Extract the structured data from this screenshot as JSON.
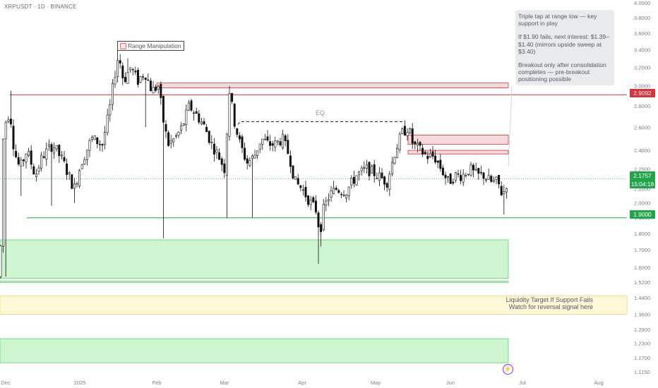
{
  "ticker_label": "XRPUSDT · 1D · BINANCE",
  "note": {
    "line1": "Triple tap at range low — key support in play",
    "line2": "If $1.90 fails, next interest: $1.39–$1.40 (mirrors upside sweep at $3.40)",
    "line3": "Breakout only after consolidation completes — pre-breakout positioning possible"
  },
  "annotations": {
    "range_manipulation": "Range Manipulation",
    "eq": "EQ",
    "liquidity_line1": "Liquidity Target If Support Fails",
    "liquidity_line2": "Watch for reversal signal here"
  },
  "badges": {
    "resistance": "2.9092",
    "price": "2.1757",
    "countdown": "15:04:18",
    "support": "1.9000"
  },
  "colors": {
    "up": "#089981",
    "down": "#f23645",
    "candle": "#111111",
    "resistance_line": "#d8333b",
    "support_line": "#22a54a",
    "price_badge": "#22a54a",
    "supply_zone": "#f7d9dc",
    "demand_zone": "#cdf5cf",
    "liquidity_zone": "#fff7d6"
  },
  "icons": {
    "alert": "lightning-icon",
    "tag": "flag-icon"
  },
  "chart_data": {
    "type": "candlestick",
    "symbol": "XRPUSDT",
    "interval": "1D",
    "exchange": "BINANCE",
    "x_ticks": [
      "Dec",
      "2025",
      "Feb",
      "Mar",
      "Apr",
      "May",
      "Jun",
      "Jul",
      "Aug"
    ],
    "y_ticks": [
      4.0,
      3.8,
      3.6,
      3.4,
      3.2,
      3.0,
      2.8,
      2.6,
      2.4,
      2.25,
      2.1,
      2.0,
      1.9,
      1.8,
      1.7,
      1.6,
      1.52,
      1.44,
      1.36,
      1.29,
      1.23,
      1.17,
      1.115
    ],
    "y_tick_labels": [
      "4.0000",
      "3.8000",
      "3.6000",
      "3.4000",
      "3.2000",
      "3.0000",
      "2.8000",
      "2.6000",
      "2.4000",
      "2.2500",
      "2.1000",
      "2.0000",
      "1.9000",
      "1.8000",
      "1.7000",
      "1.6000",
      "1.5200",
      "1.4400",
      "1.3600",
      "1.2900",
      "1.2300",
      "1.1700",
      "1.1150"
    ],
    "y_scale": "log",
    "ylim": [
      1.085,
      4.0
    ],
    "close_path": [
      [
        0,
        1.55
      ],
      [
        5,
        2.6
      ],
      [
        14,
        2.75
      ],
      [
        20,
        2.4
      ],
      [
        28,
        2.25
      ],
      [
        38,
        2.4
      ],
      [
        50,
        2.2
      ],
      [
        60,
        2.35
      ],
      [
        75,
        2.45
      ],
      [
        90,
        2.3
      ],
      [
        105,
        2.1
      ],
      [
        115,
        2.3
      ],
      [
        130,
        2.5
      ],
      [
        145,
        2.45
      ],
      [
        155,
        2.75
      ],
      [
        162,
        3.1
      ],
      [
        168,
        3.35
      ],
      [
        175,
        3.05
      ],
      [
        185,
        3.2
      ],
      [
        195,
        3.05
      ],
      [
        205,
        3.15
      ],
      [
        215,
        2.95
      ],
      [
        225,
        3.0
      ],
      [
        230,
        2.7
      ],
      [
        238,
        2.45
      ],
      [
        248,
        2.5
      ],
      [
        258,
        2.6
      ],
      [
        268,
        2.8
      ],
      [
        280,
        2.7
      ],
      [
        290,
        2.6
      ],
      [
        300,
        2.45
      ],
      [
        310,
        2.35
      ],
      [
        318,
        2.25
      ],
      [
        325,
        2.95
      ],
      [
        332,
        2.65
      ],
      [
        340,
        2.45
      ],
      [
        350,
        2.3
      ],
      [
        360,
        2.35
      ],
      [
        370,
        2.5
      ],
      [
        380,
        2.45
      ],
      [
        390,
        2.45
      ],
      [
        400,
        2.5
      ],
      [
        410,
        2.35
      ],
      [
        418,
        2.15
      ],
      [
        428,
        2.1
      ],
      [
        440,
        2.0
      ],
      [
        448,
        1.95
      ],
      [
        453,
        1.8
      ],
      [
        458,
        1.95
      ],
      [
        466,
        2.05
      ],
      [
        476,
        2.1
      ],
      [
        490,
        2.08
      ],
      [
        505,
        2.2
      ],
      [
        520,
        2.25
      ],
      [
        535,
        2.2
      ],
      [
        548,
        2.15
      ],
      [
        560,
        2.4
      ],
      [
        570,
        2.55
      ],
      [
        578,
        2.6
      ],
      [
        585,
        2.45
      ],
      [
        595,
        2.4
      ],
      [
        605,
        2.35
      ],
      [
        615,
        2.35
      ],
      [
        625,
        2.25
      ],
      [
        635,
        2.15
      ],
      [
        645,
        2.2
      ],
      [
        655,
        2.2
      ],
      [
        665,
        2.25
      ],
      [
        675,
        2.2
      ],
      [
        685,
        2.2
      ],
      [
        695,
        2.15
      ],
      [
        705,
        2.15
      ],
      [
        712,
        2.05
      ],
      [
        716,
        2.12
      ],
      [
        720,
        2.18
      ]
    ],
    "spikes": [
      [
        8,
        "low",
        1.55
      ],
      [
        14,
        "high",
        2.95
      ],
      [
        30,
        "low",
        2.05
      ],
      [
        72,
        "low",
        1.98
      ],
      [
        106,
        "low",
        2.0
      ],
      [
        168,
        "high",
        3.4
      ],
      [
        182,
        "high",
        3.3
      ],
      [
        206,
        "low",
        2.6
      ],
      [
        231,
        "low",
        1.77
      ],
      [
        325,
        "high",
        3.0
      ],
      [
        320,
        "low",
        1.9
      ],
      [
        357,
        "low",
        1.9
      ],
      [
        450,
        "low",
        1.62
      ],
      [
        456,
        "low",
        1.72
      ],
      [
        572,
        "high",
        2.66
      ],
      [
        713,
        "low",
        1.92
      ]
    ],
    "levels": [
      {
        "name": "resistance",
        "value": 2.9092
      },
      {
        "name": "support",
        "value": 1.9
      },
      {
        "name": "equal_highs",
        "value": 2.65
      }
    ],
    "last_price": 2.1757,
    "zones": [
      {
        "name": "supply_upper",
        "from": 2.98,
        "to": 3.03
      },
      {
        "name": "supply_mid",
        "from": 2.45,
        "to": 2.53
      },
      {
        "name": "supply_low",
        "from": 2.37,
        "to": 2.4
      },
      {
        "name": "demand_upper",
        "from": 1.54,
        "to": 1.76
      },
      {
        "name": "demand_thin",
        "from": 1.52,
        "to": 1.525
      },
      {
        "name": "liquidity_target",
        "from": 1.36,
        "to": 1.45
      },
      {
        "name": "demand_lower",
        "from": 1.15,
        "to": 1.25
      }
    ]
  }
}
